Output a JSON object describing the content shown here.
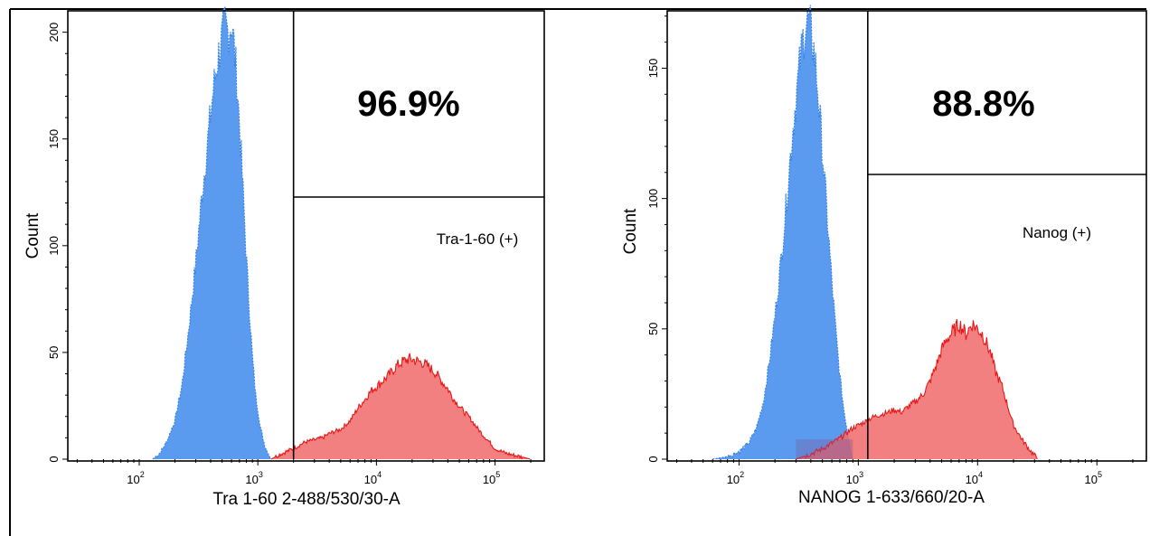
{
  "chart_data": [
    {
      "type": "histogram",
      "xscale": "log",
      "xlabel": "Tra 1-60 2-488/530/30-A",
      "ylabel": "Count",
      "xlim": [
        25,
        260000
      ],
      "ylim": [
        0,
        210
      ],
      "x_ticks": [
        {
          "value": 100,
          "base": "10",
          "exp": "2"
        },
        {
          "value": 1000,
          "base": "10",
          "exp": "3"
        },
        {
          "value": 10000,
          "base": "10",
          "exp": "4"
        },
        {
          "value": 100000,
          "base": "10",
          "exp": "5"
        }
      ],
      "y_ticks": [
        "0",
        "50",
        "100",
        "150",
        "200"
      ],
      "gate": {
        "x_min": 2000,
        "label": "Tra-1-60 (+)",
        "percent": "96.9%"
      },
      "series": [
        {
          "color": "#5b9bef",
          "edge_color": "#2f7fe8",
          "x": [
            130,
            150,
            170,
            200,
            230,
            260,
            300,
            340,
            380,
            420,
            460,
            500,
            530,
            560,
            600,
            640,
            680,
            720,
            760,
            800,
            850,
            900,
            960,
            1050,
            1150,
            1300
          ],
          "y": [
            0,
            3,
            8,
            18,
            35,
            60,
            92,
            125,
            150,
            172,
            188,
            197,
            203,
            200,
            205,
            190,
            170,
            145,
            120,
            95,
            70,
            48,
            30,
            15,
            6,
            0
          ]
        },
        {
          "color": "#f06a6a",
          "edge_color": "#e81818",
          "x": [
            1300,
            1500,
            2000,
            2500,
            3000,
            3500,
            4000,
            5000,
            6000,
            7000,
            8000,
            9000,
            10000,
            11000,
            12000,
            13000,
            14000,
            15000,
            17000,
            19000,
            22000,
            25000,
            28000,
            32000,
            36000,
            40000,
            45000,
            50000,
            55000,
            60000,
            70000,
            80000,
            90000,
            100000,
            120000,
            140000,
            170000,
            200000
          ],
          "y": [
            0,
            2,
            5,
            8,
            9,
            10,
            12,
            14,
            18,
            24,
            28,
            32,
            34,
            36,
            38,
            40,
            42,
            44,
            46,
            47,
            46,
            45,
            43,
            40,
            36,
            33,
            28,
            25,
            22,
            20,
            15,
            11,
            8,
            5,
            3,
            2,
            1,
            0
          ]
        }
      ]
    },
    {
      "type": "histogram",
      "xscale": "log",
      "xlabel": "NANOG 1-633/660/20-A",
      "ylabel": "Count",
      "xlim": [
        25,
        260000
      ],
      "ylim": [
        0,
        172
      ],
      "x_ticks": [
        {
          "value": 100,
          "base": "10",
          "exp": "2"
        },
        {
          "value": 1000,
          "base": "10",
          "exp": "3"
        },
        {
          "value": 10000,
          "base": "10",
          "exp": "4"
        },
        {
          "value": 100000,
          "base": "10",
          "exp": "5"
        }
      ],
      "y_ticks": [
        "0",
        "50",
        "100",
        "150"
      ],
      "gate": {
        "x_min": 1200,
        "label": "Nanog (+)",
        "percent": "88.8%"
      },
      "series": [
        {
          "color": "#5b9bef",
          "edge_color": "#2f7fe8",
          "x": [
            60,
            80,
            100,
            120,
            140,
            160,
            180,
            200,
            220,
            240,
            260,
            280,
            300,
            320,
            340,
            360,
            380,
            400,
            430,
            460,
            500,
            550,
            600,
            650,
            700,
            750,
            800,
            850,
            900
          ],
          "y": [
            0,
            1,
            3,
            6,
            12,
            22,
            38,
            55,
            72,
            90,
            108,
            125,
            138,
            150,
            160,
            166,
            168,
            164,
            155,
            140,
            118,
            92,
            68,
            48,
            32,
            20,
            12,
            6,
            0
          ]
        },
        {
          "color": "#f06a6a",
          "edge_color": "#e81818",
          "x": [
            300,
            400,
            500,
            700,
            900,
            1100,
            1300,
            1500,
            1800,
            2000,
            2300,
            2600,
            3000,
            3500,
            4000,
            4500,
            5000,
            5500,
            6000,
            6500,
            7000,
            7500,
            8000,
            9000,
            10000,
            11000,
            12000,
            13000,
            14000,
            16000,
            18000,
            20000,
            24000,
            28000,
            32000
          ],
          "y": [
            0,
            2,
            4,
            8,
            12,
            14,
            16,
            17,
            18,
            19,
            18,
            20,
            22,
            25,
            30,
            36,
            42,
            46,
            48,
            50,
            52,
            50,
            48,
            52,
            50,
            48,
            44,
            40,
            34,
            28,
            20,
            13,
            7,
            3,
            0
          ]
        }
      ]
    }
  ]
}
